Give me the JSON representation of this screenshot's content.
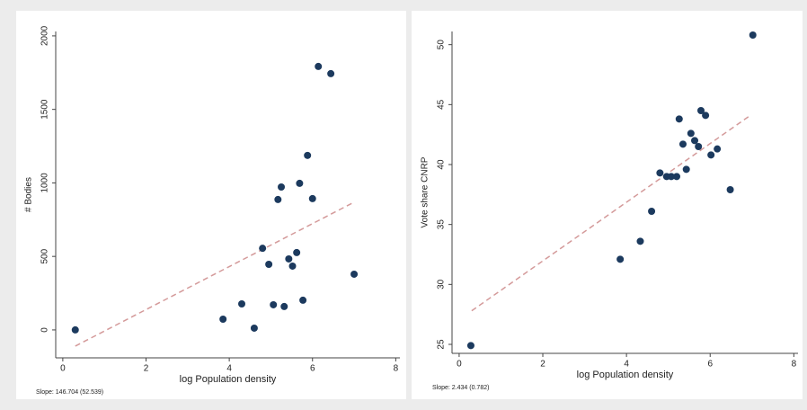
{
  "chart_data": [
    {
      "type": "scatter",
      "y_label": "# Bodies",
      "x_label": "log Population density",
      "annotation": "Slope: 146.704 (52.539)",
      "x": [
        0.3,
        3.85,
        4.3,
        4.6,
        4.8,
        4.95,
        5.06,
        5.17,
        5.25,
        5.32,
        5.43,
        5.52,
        5.62,
        5.69,
        5.77,
        5.88,
        6.0,
        6.14,
        6.44,
        7.0
      ],
      "values": [
        0,
        73,
        177,
        12,
        555,
        446,
        171,
        887,
        972,
        159,
        483,
        434,
        526,
        997,
        202,
        1187,
        893,
        1792,
        1743,
        379
      ],
      "color": "#1c3a5e",
      "fit": {
        "x": [
          0.3,
          7.0
        ],
        "y": [
          -110,
          869
        ],
        "color": "#d49a9a"
      },
      "xlim": [
        -0.17,
        8.1
      ],
      "ylim": [
        -190,
        2030
      ],
      "xticks": [
        0,
        2,
        4,
        6,
        8
      ],
      "yticks": [
        0,
        500,
        1000,
        1500,
        2000
      ],
      "grid": false
    },
    {
      "type": "scatter",
      "y_label": "Vote share CNRP",
      "x_label": "log Population density",
      "annotation": "Slope: 2.434 (0.782)",
      "x": [
        0.28,
        3.85,
        4.33,
        4.6,
        4.8,
        4.96,
        5.07,
        5.2,
        5.26,
        5.35,
        5.43,
        5.54,
        5.63,
        5.72,
        5.78,
        5.89,
        6.02,
        6.17,
        6.48,
        7.02
      ],
      "values": [
        24.9,
        32.1,
        33.6,
        36.1,
        39.3,
        39.0,
        39.0,
        39.0,
        43.8,
        41.7,
        39.6,
        42.6,
        42.0,
        41.5,
        44.5,
        44.1,
        40.8,
        41.3,
        37.9,
        50.8
      ],
      "color": "#1c3a5e",
      "fit": {
        "x": [
          0.3,
          6.96
        ],
        "y": [
          27.8,
          44.1
        ],
        "color": "#d49a9a"
      },
      "xlim": [
        -0.17,
        8.1
      ],
      "ylim": [
        24.25,
        51.1
      ],
      "xticks": [
        0,
        2,
        4,
        6,
        8
      ],
      "yticks": [
        25,
        30,
        35,
        40,
        45,
        50
      ],
      "grid": false
    }
  ]
}
